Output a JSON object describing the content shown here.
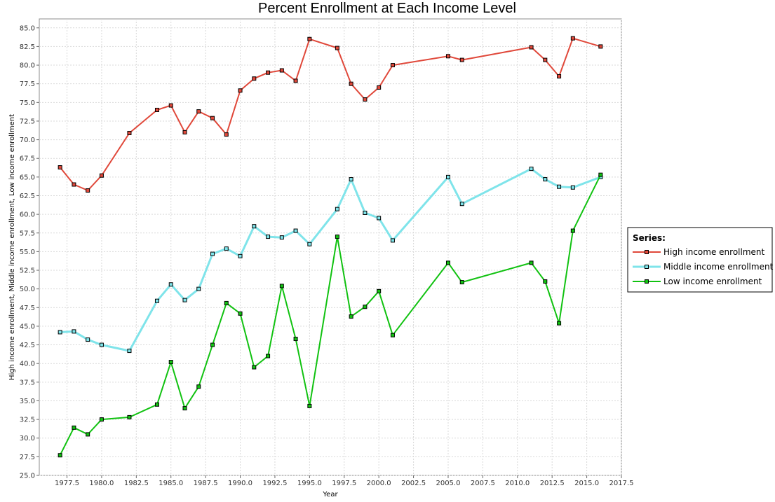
{
  "chart_data": {
    "type": "line",
    "title": "Percent Enrollment at Each Income Level",
    "xlabel": "Year",
    "ylabel": "High income enrollment, Middle income enrollment, Low income enrollment",
    "xlim": [
      1975.5,
      2017.5
    ],
    "ylim": [
      25.0,
      86.2
    ],
    "x_ticks": [
      "1977.5",
      "1980.0",
      "1982.5",
      "1985.0",
      "1987.5",
      "1990.0",
      "1992.5",
      "1995.0",
      "1997.5",
      "2000.0",
      "2002.5",
      "2005.0",
      "2007.5",
      "2010.0",
      "2012.5",
      "2015.0",
      "2017.5"
    ],
    "y_ticks": [
      "25.0",
      "27.5",
      "30.0",
      "32.5",
      "35.0",
      "37.5",
      "40.0",
      "42.5",
      "45.0",
      "47.5",
      "50.0",
      "52.5",
      "55.0",
      "57.5",
      "60.0",
      "62.5",
      "65.0",
      "67.5",
      "70.0",
      "72.5",
      "75.0",
      "77.5",
      "80.0",
      "82.5",
      "85.0"
    ],
    "grid": true,
    "legend": {
      "title": "Series:",
      "placement": "right"
    },
    "series": [
      {
        "name": "High income enrollment",
        "color": "#e0483a",
        "x": [
          1977,
          1978,
          1979,
          1980,
          1982,
          1984,
          1985,
          1986,
          1987,
          1988,
          1989,
          1990,
          1991,
          1992,
          1993,
          1994,
          1995,
          1997,
          1998,
          1999,
          2000,
          2001,
          2005,
          2006,
          2011,
          2012,
          2013,
          2014,
          2016
        ],
        "values": [
          66.3,
          64.0,
          63.2,
          65.2,
          70.9,
          74.0,
          74.6,
          71.0,
          73.8,
          72.9,
          70.7,
          76.6,
          78.2,
          79.0,
          79.3,
          77.9,
          83.5,
          82.3,
          77.5,
          75.4,
          77.0,
          80.0,
          81.2,
          80.7,
          82.4,
          80.7,
          78.5,
          83.6,
          82.5
        ]
      },
      {
        "name": "Middle income enrollment",
        "color": "#7fe4ea",
        "x": [
          1977,
          1978,
          1979,
          1980,
          1982,
          1984,
          1985,
          1986,
          1987,
          1988,
          1989,
          1990,
          1991,
          1992,
          1993,
          1994,
          1995,
          1997,
          1998,
          1999,
          2000,
          2001,
          2005,
          2006,
          2011,
          2012,
          2013,
          2014,
          2016
        ],
        "values": [
          44.2,
          44.3,
          43.2,
          42.5,
          41.7,
          48.4,
          50.6,
          48.5,
          50.0,
          54.7,
          55.4,
          54.4,
          58.4,
          57.0,
          56.9,
          57.8,
          56.0,
          60.7,
          64.7,
          60.2,
          59.5,
          56.5,
          65.0,
          61.4,
          66.1,
          64.7,
          63.7,
          63.6,
          65.0
        ]
      },
      {
        "name": "Low income enrollment",
        "color": "#11c211",
        "x": [
          1977,
          1978,
          1979,
          1980,
          1982,
          1984,
          1985,
          1986,
          1987,
          1988,
          1989,
          1990,
          1991,
          1992,
          1993,
          1994,
          1995,
          1997,
          1998,
          1999,
          2000,
          2001,
          2005,
          2006,
          2011,
          2012,
          2013,
          2014,
          2016
        ],
        "values": [
          27.7,
          31.4,
          30.5,
          32.5,
          32.8,
          34.5,
          40.2,
          34.0,
          36.9,
          42.5,
          48.1,
          46.7,
          39.5,
          41.0,
          50.4,
          43.3,
          34.3,
          57.0,
          46.3,
          47.6,
          49.7,
          43.8,
          53.5,
          50.9,
          53.5,
          51.0,
          45.4,
          57.8,
          65.3
        ]
      }
    ]
  }
}
